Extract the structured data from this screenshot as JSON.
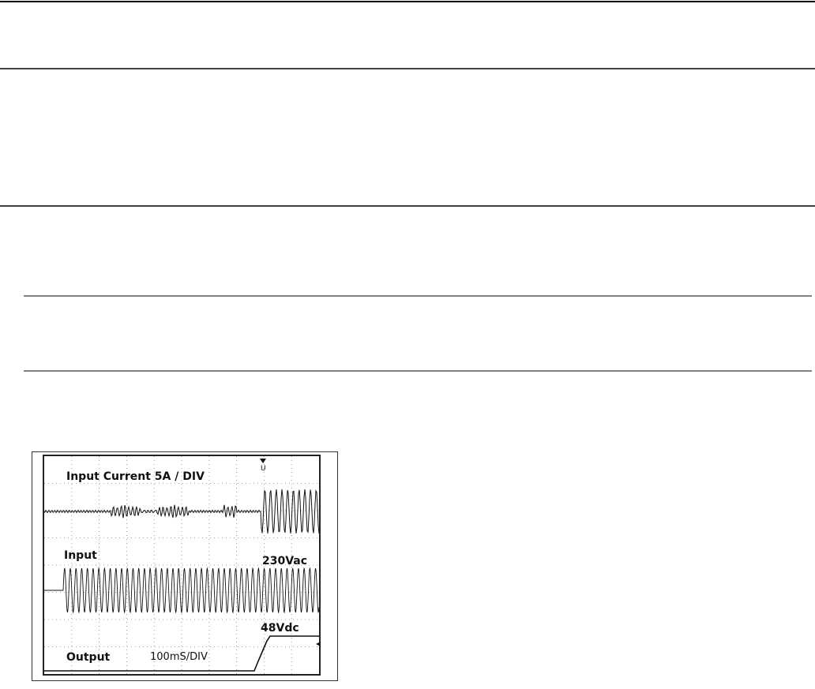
{
  "scope": {
    "labels": {
      "current": "Input Current 5A / DIV",
      "input": "Input",
      "input_voltage": "230Vac",
      "output_voltage": "48Vdc",
      "output": "Output",
      "timebase": "100mS/DIV"
    }
  }
}
